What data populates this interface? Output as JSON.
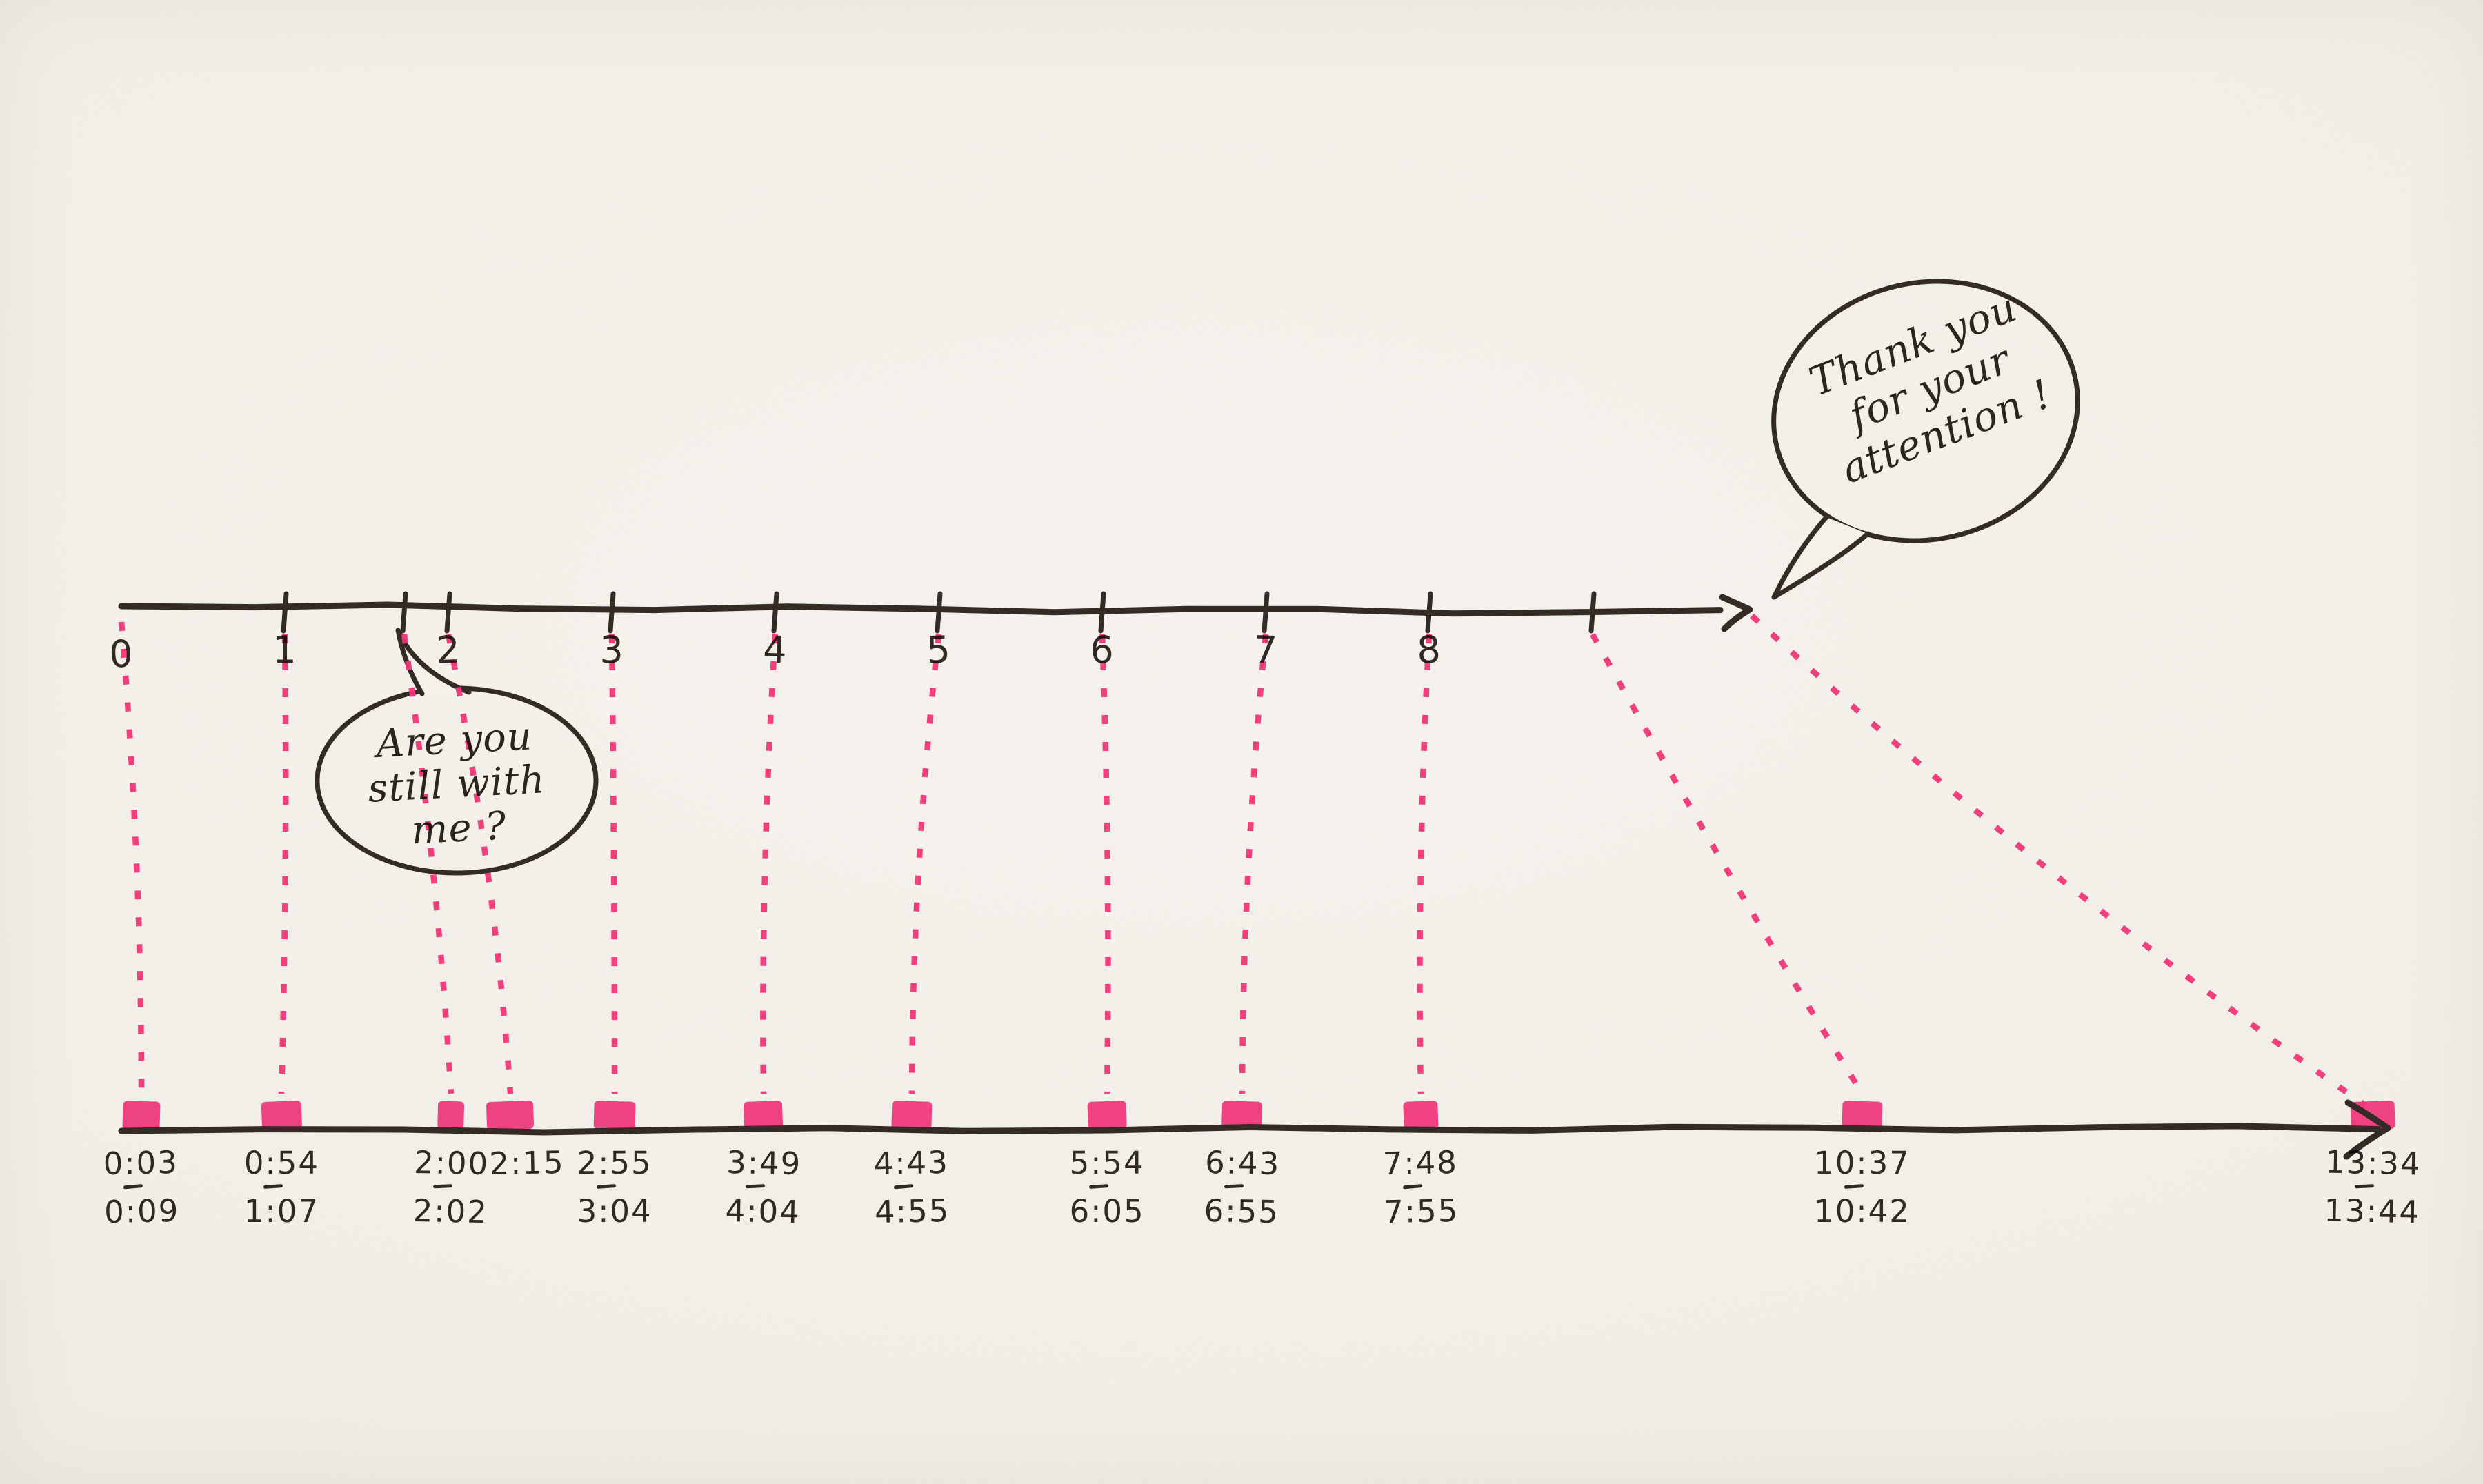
{
  "palette": {
    "paper": "#f4f1eb",
    "ink": "#342b26",
    "marker": "#ef3577"
  },
  "top_axis": {
    "ticks": [
      {
        "unit": 0,
        "label": "0",
        "has_tick": false
      },
      {
        "unit": 1,
        "label": "1",
        "has_tick": true
      },
      {
        "unit": 1.73,
        "label": "",
        "has_tick": true
      },
      {
        "unit": 2,
        "label": "2",
        "has_tick": true
      },
      {
        "unit": 3,
        "label": "3",
        "has_tick": true
      },
      {
        "unit": 4,
        "label": "4",
        "has_tick": true
      },
      {
        "unit": 5,
        "label": "5",
        "has_tick": true
      },
      {
        "unit": 6,
        "label": "6",
        "has_tick": true
      },
      {
        "unit": 7,
        "label": "7",
        "has_tick": true
      },
      {
        "unit": 8,
        "label": "8",
        "has_tick": true
      },
      {
        "unit": 9,
        "label": "",
        "has_tick": true
      }
    ]
  },
  "bottom_axis": {
    "stamps": [
      {
        "start": "0:03",
        "end": "0:09"
      },
      {
        "start": "0:54",
        "end": "1:07"
      },
      {
        "start": "2:00",
        "end": "2:02"
      },
      {
        "start": "2:15",
        "end": ""
      },
      {
        "start": "2:55",
        "end": "3:04"
      },
      {
        "start": "3:49",
        "end": "4:04"
      },
      {
        "start": "4:43",
        "end": "4:55"
      },
      {
        "start": "5:54",
        "end": "6:05"
      },
      {
        "start": "6:43",
        "end": "6:55"
      },
      {
        "start": "7:48",
        "end": "7:55"
      },
      {
        "start": "10:37",
        "end": "10:42"
      },
      {
        "start": "13:34",
        "end": "13:44"
      }
    ]
  },
  "connectors": [
    {
      "tick": 0,
      "stamp": 0
    },
    {
      "tick": 1,
      "stamp": 1
    },
    {
      "tick": 2,
      "stamp": 2
    },
    {
      "tick": 3,
      "stamp": 3
    },
    {
      "tick": 4,
      "stamp": 4
    },
    {
      "tick": 5,
      "stamp": 5
    },
    {
      "tick": 6,
      "stamp": 6
    },
    {
      "tick": 7,
      "stamp": 7
    },
    {
      "tick": 8,
      "stamp": 8
    },
    {
      "tick": 9,
      "stamp": 9
    },
    {
      "tick": 10,
      "stamp": 10
    },
    {
      "tick": null,
      "stamp": 11
    }
  ],
  "bubbles": {
    "question": {
      "lines": [
        "Are you",
        "still with",
        "me ?"
      ]
    },
    "thanks": {
      "lines": [
        "Thank you",
        "for your",
        "attention !"
      ]
    }
  }
}
